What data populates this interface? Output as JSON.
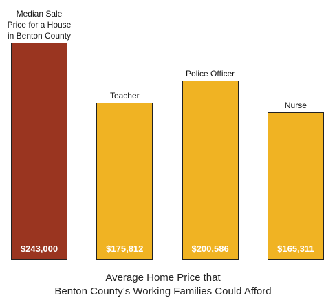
{
  "chart_data": {
    "type": "bar",
    "title": "Average Home Price that\nBenton County’s  Working Families Could Afford",
    "categories": [
      "Median Sale\nPrice for a House\nin Benton County",
      "Teacher",
      "Police Officer",
      "Nurse"
    ],
    "values": [
      243000,
      175812,
      200586,
      165311
    ],
    "value_labels": [
      "$243,000",
      "$175,812",
      "$200,586",
      "$165,311"
    ],
    "colors": [
      "#9a3520",
      "#f0b323",
      "#f0b323",
      "#f0b323"
    ]
  }
}
